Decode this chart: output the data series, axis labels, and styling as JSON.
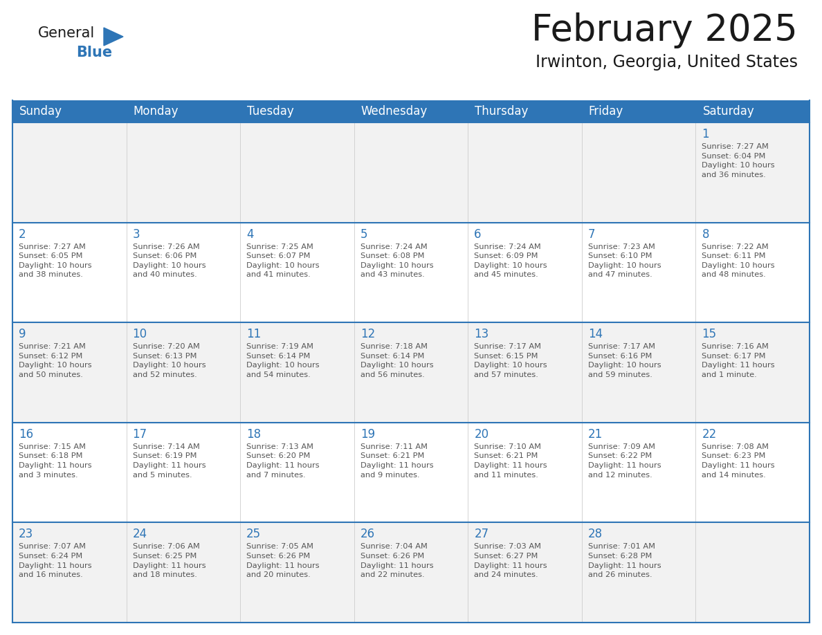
{
  "title": "February 2025",
  "subtitle": "Irwinton, Georgia, United States",
  "header_bg": "#2E75B6",
  "header_text_color": "#FFFFFF",
  "cell_border_color": "#2E75B6",
  "day_number_color": "#2E75B6",
  "info_text_color": "#555555",
  "bg_color": "#FFFFFF",
  "row_alt_bg": "#F2F2F2",
  "days_of_week": [
    "Sunday",
    "Monday",
    "Tuesday",
    "Wednesday",
    "Thursday",
    "Friday",
    "Saturday"
  ],
  "calendar_data": [
    [
      null,
      null,
      null,
      null,
      null,
      null,
      {
        "day": 1,
        "sunrise": "7:27 AM",
        "sunset": "6:04 PM",
        "daylight": "10 hours\nand 36 minutes."
      }
    ],
    [
      {
        "day": 2,
        "sunrise": "7:27 AM",
        "sunset": "6:05 PM",
        "daylight": "10 hours\nand 38 minutes."
      },
      {
        "day": 3,
        "sunrise": "7:26 AM",
        "sunset": "6:06 PM",
        "daylight": "10 hours\nand 40 minutes."
      },
      {
        "day": 4,
        "sunrise": "7:25 AM",
        "sunset": "6:07 PM",
        "daylight": "10 hours\nand 41 minutes."
      },
      {
        "day": 5,
        "sunrise": "7:24 AM",
        "sunset": "6:08 PM",
        "daylight": "10 hours\nand 43 minutes."
      },
      {
        "day": 6,
        "sunrise": "7:24 AM",
        "sunset": "6:09 PM",
        "daylight": "10 hours\nand 45 minutes."
      },
      {
        "day": 7,
        "sunrise": "7:23 AM",
        "sunset": "6:10 PM",
        "daylight": "10 hours\nand 47 minutes."
      },
      {
        "day": 8,
        "sunrise": "7:22 AM",
        "sunset": "6:11 PM",
        "daylight": "10 hours\nand 48 minutes."
      }
    ],
    [
      {
        "day": 9,
        "sunrise": "7:21 AM",
        "sunset": "6:12 PM",
        "daylight": "10 hours\nand 50 minutes."
      },
      {
        "day": 10,
        "sunrise": "7:20 AM",
        "sunset": "6:13 PM",
        "daylight": "10 hours\nand 52 minutes."
      },
      {
        "day": 11,
        "sunrise": "7:19 AM",
        "sunset": "6:14 PM",
        "daylight": "10 hours\nand 54 minutes."
      },
      {
        "day": 12,
        "sunrise": "7:18 AM",
        "sunset": "6:14 PM",
        "daylight": "10 hours\nand 56 minutes."
      },
      {
        "day": 13,
        "sunrise": "7:17 AM",
        "sunset": "6:15 PM",
        "daylight": "10 hours\nand 57 minutes."
      },
      {
        "day": 14,
        "sunrise": "7:17 AM",
        "sunset": "6:16 PM",
        "daylight": "10 hours\nand 59 minutes."
      },
      {
        "day": 15,
        "sunrise": "7:16 AM",
        "sunset": "6:17 PM",
        "daylight": "11 hours\nand 1 minute."
      }
    ],
    [
      {
        "day": 16,
        "sunrise": "7:15 AM",
        "sunset": "6:18 PM",
        "daylight": "11 hours\nand 3 minutes."
      },
      {
        "day": 17,
        "sunrise": "7:14 AM",
        "sunset": "6:19 PM",
        "daylight": "11 hours\nand 5 minutes."
      },
      {
        "day": 18,
        "sunrise": "7:13 AM",
        "sunset": "6:20 PM",
        "daylight": "11 hours\nand 7 minutes."
      },
      {
        "day": 19,
        "sunrise": "7:11 AM",
        "sunset": "6:21 PM",
        "daylight": "11 hours\nand 9 minutes."
      },
      {
        "day": 20,
        "sunrise": "7:10 AM",
        "sunset": "6:21 PM",
        "daylight": "11 hours\nand 11 minutes."
      },
      {
        "day": 21,
        "sunrise": "7:09 AM",
        "sunset": "6:22 PM",
        "daylight": "11 hours\nand 12 minutes."
      },
      {
        "day": 22,
        "sunrise": "7:08 AM",
        "sunset": "6:23 PM",
        "daylight": "11 hours\nand 14 minutes."
      }
    ],
    [
      {
        "day": 23,
        "sunrise": "7:07 AM",
        "sunset": "6:24 PM",
        "daylight": "11 hours\nand 16 minutes."
      },
      {
        "day": 24,
        "sunrise": "7:06 AM",
        "sunset": "6:25 PM",
        "daylight": "11 hours\nand 18 minutes."
      },
      {
        "day": 25,
        "sunrise": "7:05 AM",
        "sunset": "6:26 PM",
        "daylight": "11 hours\nand 20 minutes."
      },
      {
        "day": 26,
        "sunrise": "7:04 AM",
        "sunset": "6:26 PM",
        "daylight": "11 hours\nand 22 minutes."
      },
      {
        "day": 27,
        "sunrise": "7:03 AM",
        "sunset": "6:27 PM",
        "daylight": "11 hours\nand 24 minutes."
      },
      {
        "day": 28,
        "sunrise": "7:01 AM",
        "sunset": "6:28 PM",
        "daylight": "11 hours\nand 26 minutes."
      },
      null
    ]
  ],
  "logo_text_general": "General",
  "logo_text_blue": "Blue",
  "logo_color_general": "#1a1a1a",
  "logo_color_blue": "#2E75B6",
  "logo_triangle_color": "#2E75B6"
}
